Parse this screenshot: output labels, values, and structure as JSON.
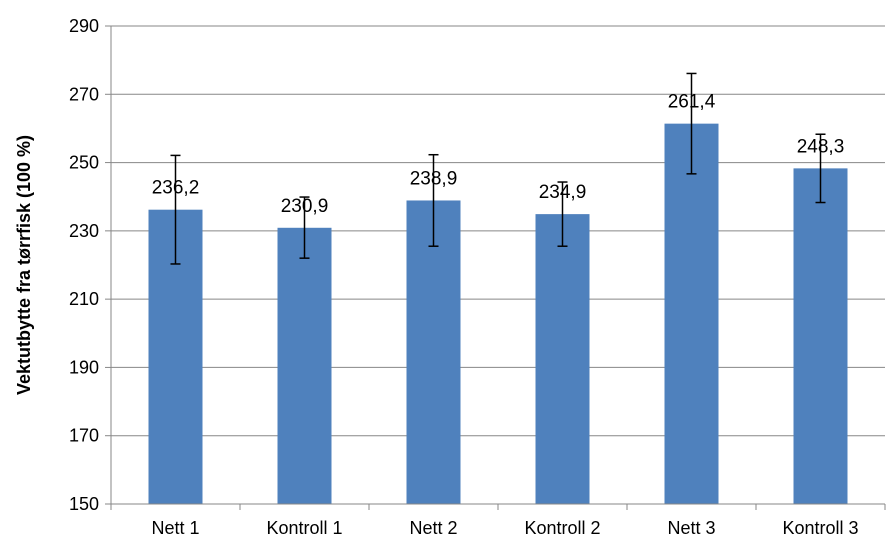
{
  "chart_data": {
    "type": "bar",
    "categories": [
      "Nett 1",
      "Kontroll 1",
      "Nett 2",
      "Kontroll 2",
      "Nett 3",
      "Kontroll 3"
    ],
    "values": [
      236.2,
      230.9,
      238.9,
      234.9,
      261.4,
      248.3
    ],
    "value_labels": [
      "236,2",
      "230,9",
      "238,9",
      "234,9",
      "261,4",
      "248,3"
    ],
    "error_bars": [
      {
        "low": 220.3,
        "high": 252.1
      },
      {
        "low": 222.0,
        "high": 239.9
      },
      {
        "low": 225.5,
        "high": 252.3
      },
      {
        "low": 225.5,
        "high": 244.3
      },
      {
        "low": 246.7,
        "high": 276.1
      },
      {
        "low": 238.3,
        "high": 258.3
      }
    ],
    "ylabel": "Vektutbytte fra tørrfisk (100 %)",
    "ylim": [
      150,
      290
    ],
    "yticks": [
      150,
      170,
      190,
      210,
      230,
      250,
      270,
      290
    ],
    "grid": true,
    "bar_color": "#4F81BD"
  }
}
